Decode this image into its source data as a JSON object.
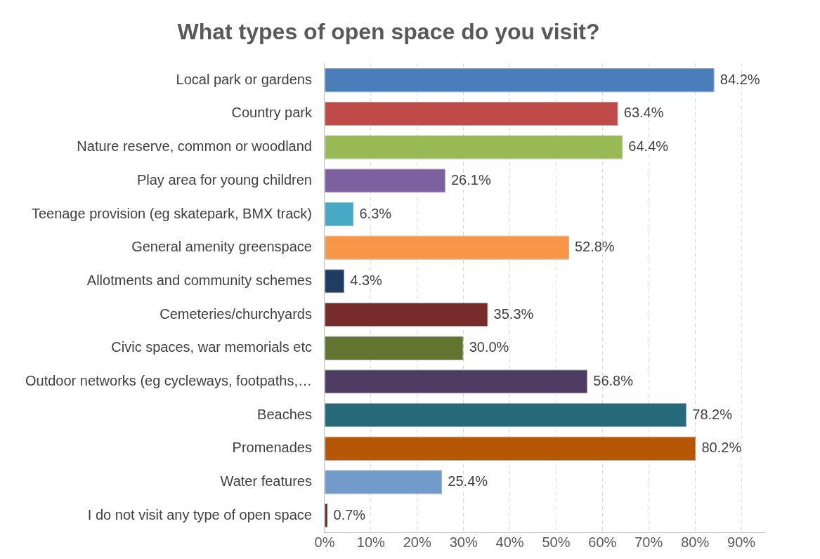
{
  "chart_data": {
    "type": "bar",
    "orientation": "horizontal",
    "title": "What types of open space do you visit?",
    "categories": [
      "Local park or gardens",
      "Country park",
      "Nature reserve, common or woodland",
      "Play area for young children",
      "Teenage provision (eg skatepark, BMX track)",
      "General amenity greenspace",
      "Allotments and community schemes",
      "Cemeteries/churchyards",
      "Civic spaces, war memorials etc",
      "Outdoor networks (eg cycleways, footpaths,…",
      "Beaches",
      "Promenades",
      "Water features",
      "I do not visit any type of open space"
    ],
    "values": [
      84.2,
      63.4,
      64.4,
      26.1,
      6.3,
      52.8,
      4.3,
      35.3,
      30.0,
      56.8,
      78.2,
      80.2,
      25.4,
      0.7
    ],
    "value_labels": [
      "84.2%",
      "63.4%",
      "64.4%",
      "26.1%",
      "6.3%",
      "52.8%",
      "4.3%",
      "35.3%",
      "30.0%",
      "56.8%",
      "78.2%",
      "80.2%",
      "25.4%",
      "0.7%"
    ],
    "colors": [
      "#4a7ebb",
      "#be4b48",
      "#98b954",
      "#7d60a0",
      "#46aac5",
      "#f79646",
      "#1f3d63",
      "#772c2a",
      "#5f7530",
      "#4d3b62",
      "#276a7c",
      "#b65708",
      "#729aca",
      "#5b2523"
    ],
    "xlim": [
      0,
      95
    ],
    "xticks": [
      {
        "value": 0,
        "label": "0%"
      },
      {
        "value": 10,
        "label": "10%"
      },
      {
        "value": 20,
        "label": "20%"
      },
      {
        "value": 30,
        "label": "30%"
      },
      {
        "value": 40,
        "label": "40%"
      },
      {
        "value": 50,
        "label": "50%"
      },
      {
        "value": 60,
        "label": "60%"
      },
      {
        "value": 70,
        "label": "70%"
      },
      {
        "value": 80,
        "label": "80%"
      },
      {
        "value": 90,
        "label": "90%"
      }
    ],
    "grid": "x",
    "legend": false
  }
}
